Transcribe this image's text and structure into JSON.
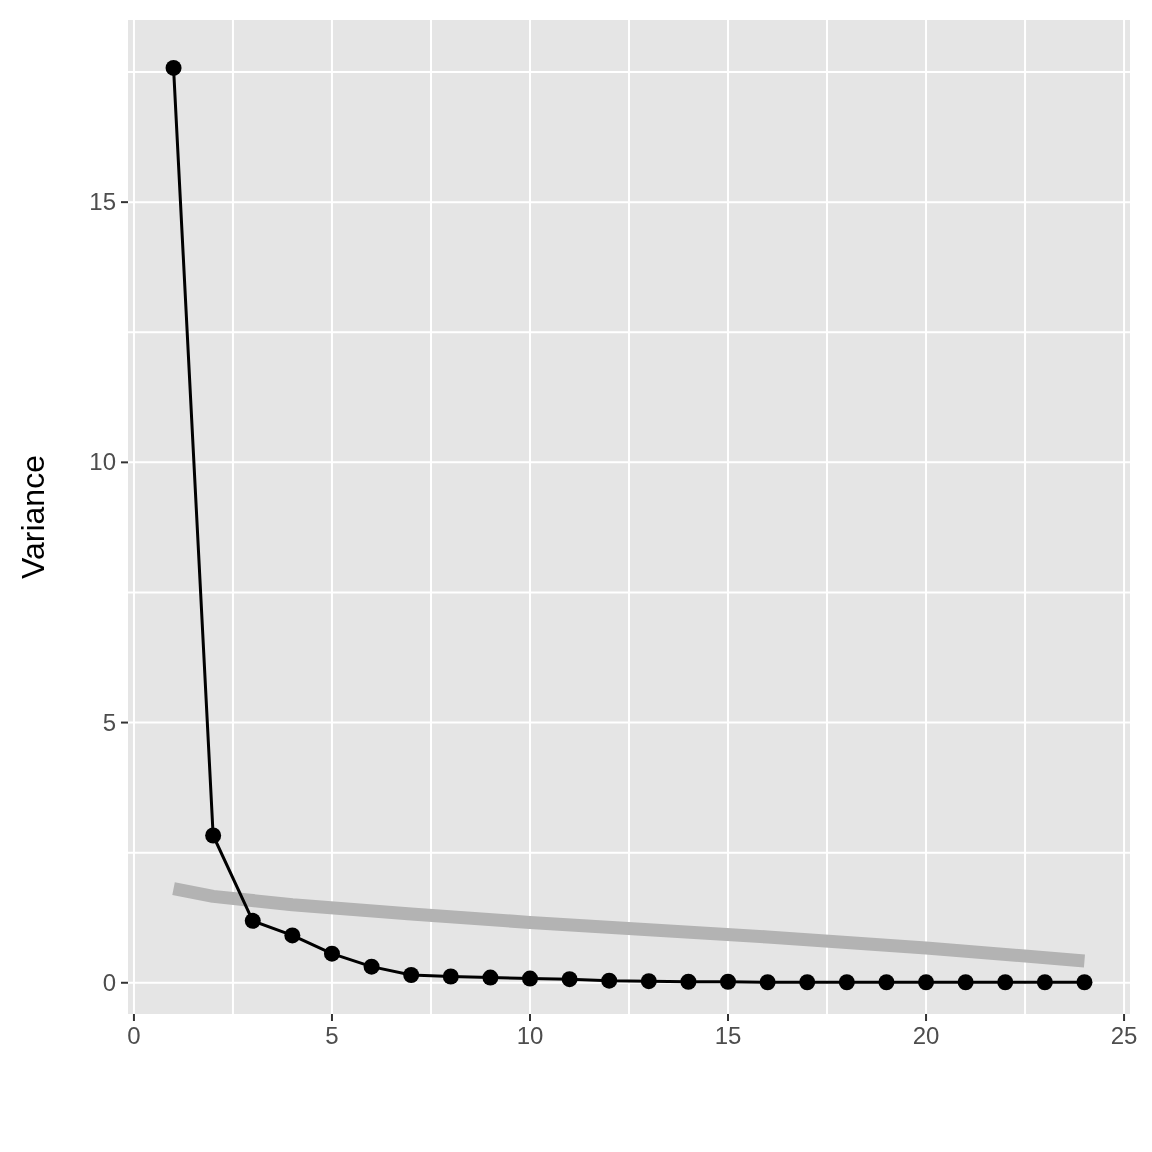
{
  "chart_data": {
    "type": "line",
    "ylabel": "Variance",
    "xlim": [
      -0.15,
      25.15
    ],
    "ylim": [
      -0.6,
      18.5
    ],
    "xticks": [
      0,
      {
        "value": 2.5,
        "label": null
      },
      5,
      {
        "value": 7.5,
        "label": null
      },
      10,
      {
        "value": 12.5,
        "label": null
      },
      15,
      {
        "value": 17.5,
        "label": null
      },
      20,
      {
        "value": 22.5,
        "label": null
      },
      25
    ],
    "yticks": [
      0,
      {
        "value": 2.5,
        "label": null
      },
      5,
      {
        "value": 7.5,
        "label": null
      },
      10,
      {
        "value": 12.5,
        "label": null
      },
      15,
      {
        "value": 17.5,
        "label": null
      }
    ],
    "grid": true,
    "marker": "circle",
    "line_style": "solid",
    "series": [
      {
        "color": "#b3b3b3",
        "marker": "none",
        "x": [
          1,
          2,
          4,
          7,
          10,
          13,
          16,
          20,
          24
        ],
        "values": [
          1.81,
          1.66,
          1.5,
          1.32,
          1.16,
          1.02,
          0.88,
          0.67,
          0.42
        ]
      },
      {
        "color": "#000000",
        "x": [
          1,
          2,
          3,
          4,
          5,
          6,
          7,
          8,
          9,
          10,
          11,
          12,
          13,
          14,
          15,
          16,
          17,
          18,
          19,
          20,
          21,
          22,
          23,
          24
        ],
        "values": [
          17.58,
          2.83,
          1.19,
          0.91,
          0.56,
          0.31,
          0.15,
          0.12,
          0.1,
          0.08,
          0.07,
          0.04,
          0.03,
          0.02,
          0.02,
          0.01,
          0.01,
          0.01,
          0.01,
          0.01,
          0.01,
          0.01,
          0.01,
          0.01
        ]
      }
    ]
  }
}
